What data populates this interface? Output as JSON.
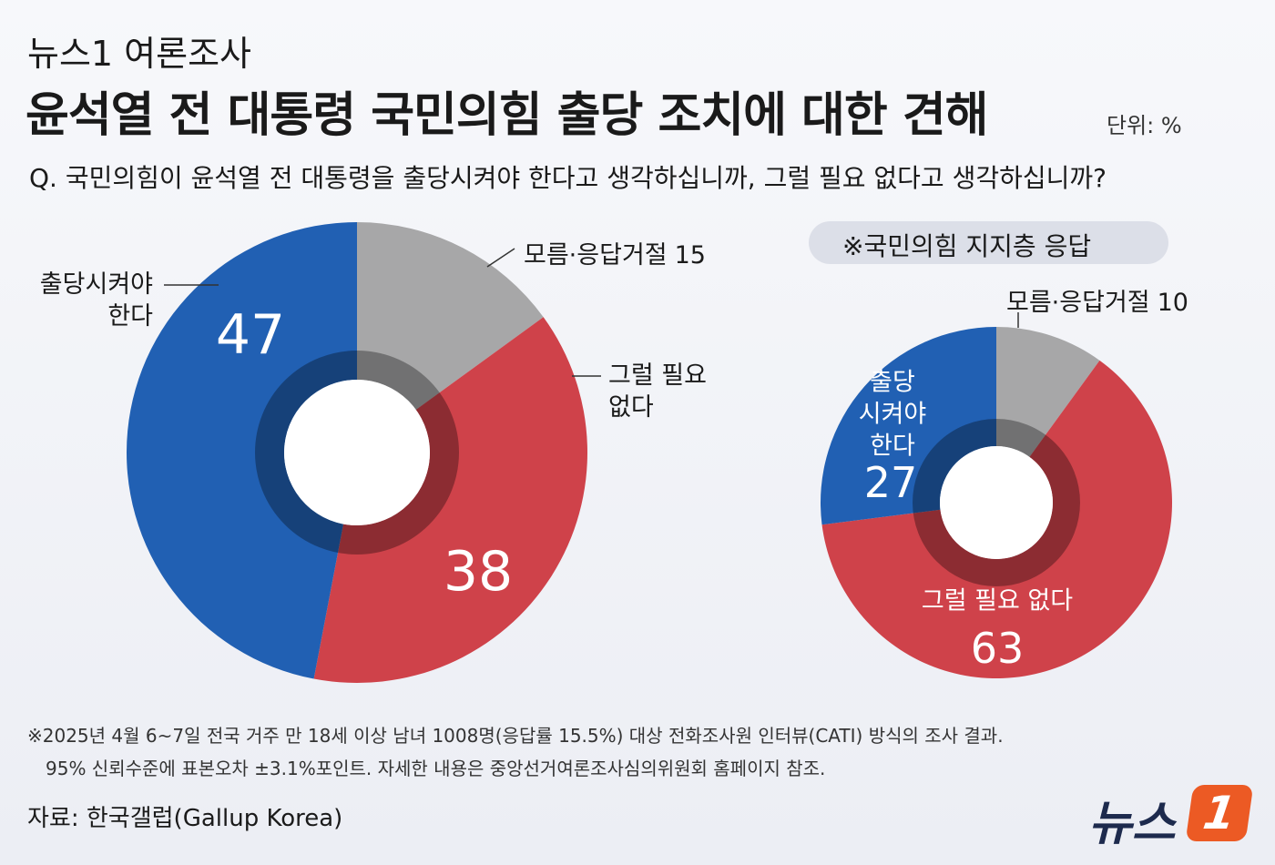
{
  "header": {
    "kicker": "뉴스1 여론조사",
    "title": "윤석열 전 대통령 국민의힘 출당 조치에 대한 견해",
    "unit": "단위: %",
    "question": "Q.  국민의힘이 윤석열 전 대통령을 출당시켜야 한다고 생각하십니까, 그럴 필요 없다고 생각하십니까?"
  },
  "chart_data": [
    {
      "type": "donut",
      "categories": [
        "모름·응답거절",
        "그럴 필요\n없다",
        "출당시켜야\n한다"
      ],
      "values": [
        15,
        38,
        47
      ],
      "colors": [
        "#a7a7a8",
        "#cf424a",
        "#2160b3"
      ]
    },
    {
      "type": "donut",
      "subtitle": "※국민의힘 지지층 응답",
      "categories": [
        "모름·응답거절",
        "그럴 필요 없다",
        "출당\n시켜야\n한다"
      ],
      "values": [
        10,
        63,
        27
      ],
      "colors": [
        "#a7a7a8",
        "#cf424a",
        "#2160b3"
      ]
    }
  ],
  "footer": {
    "notes": [
      "※2025년 4월 6~7일 전국 거주 만 18세 이상 남녀 1008명(응답률 15.5%) 대상 전화조사원 인터뷰(CATI) 방식의 조사 결과.",
      "95% 신뢰수준에 표본오차 ±3.1%포인트. 자세한 내용은 중앙선거여론조사심의위원회 홈페이지 참조."
    ],
    "source": "자료: 한국갤럽(Gallup Korea)",
    "logo": {
      "text": "뉴스",
      "mark": "1"
    }
  }
}
